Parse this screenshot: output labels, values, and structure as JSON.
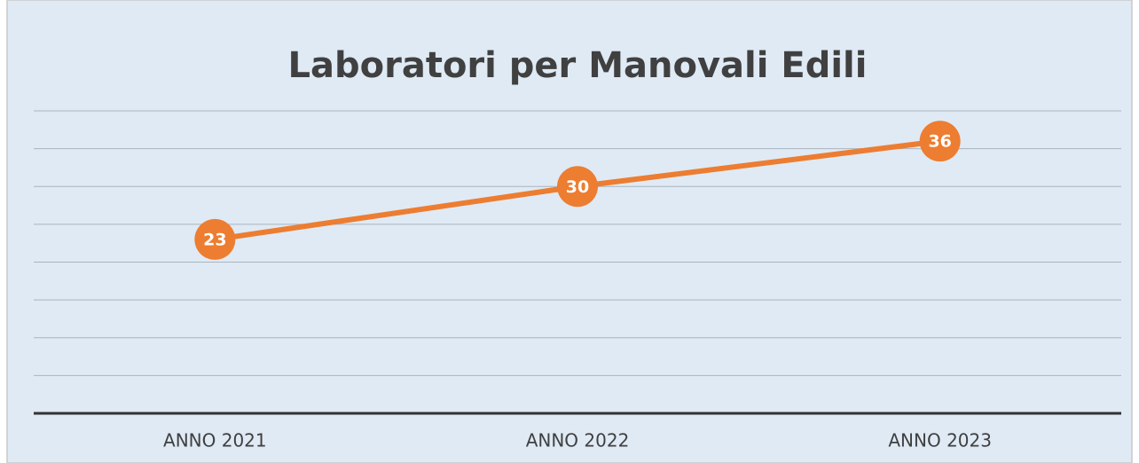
{
  "chart_data": {
    "type": "line",
    "title": "Laboratori per Manovali Edili",
    "categories": [
      "ANNO 2021",
      "ANNO 2022",
      "ANNO 2023"
    ],
    "values": [
      23,
      30,
      36
    ],
    "color": "#ed7d31",
    "ylim": [
      0,
      40
    ],
    "yticks": [
      0,
      5,
      10,
      15,
      20,
      25,
      30,
      35,
      40
    ],
    "grid": true
  }
}
